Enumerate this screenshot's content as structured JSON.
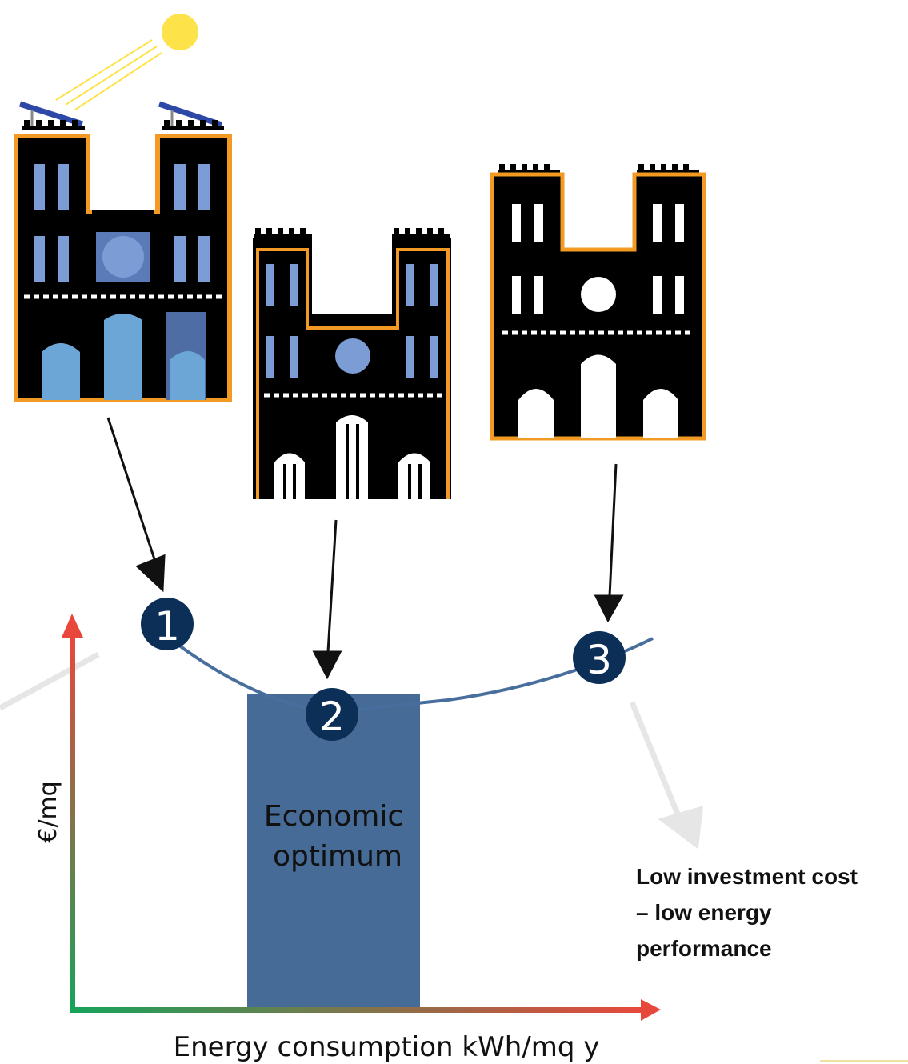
{
  "optimum_band": {
    "label_lines": [
      "Economic",
      "optimum"
    ],
    "color": "#466b96"
  },
  "axes": {
    "y_label": "€/mq",
    "x_label": "Energy consumption kWh/mq y"
  },
  "markers": [
    {
      "number": "1"
    },
    {
      "number": "2"
    },
    {
      "number": "3"
    }
  ],
  "note_lines": [
    "Low investment cost",
    "– low energy",
    "performance"
  ],
  "colors": {
    "curve": "#476e9c",
    "marker": "#0b2f57",
    "building_outline": "#f29a24",
    "window": "#7b9cd4",
    "sun": "#fde24a",
    "axis_start": "#16a35a",
    "axis_end": "#e8483c"
  },
  "icons": [
    "sun-icon",
    "solar-panel-icon",
    "cathedral-icon"
  ]
}
